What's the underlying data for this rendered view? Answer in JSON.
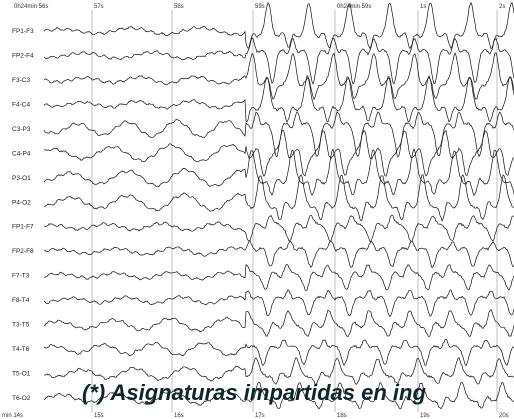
{
  "time_labels_top": [
    "0h24min 56s",
    "57s",
    "58s",
    "59s",
    "0h24min 59s",
    "1s",
    "2s"
  ],
  "time_labels_bottom": [
    "min 14s",
    "15s",
    "16s",
    "17s",
    "18s",
    "19s",
    "20s"
  ],
  "channels": [
    "FP1-F3",
    "FP2-F4",
    "F3-C3",
    "F4-C4",
    "C3-P3",
    "C4-P4",
    "P3-O1",
    "P4-O2",
    "FP1-F7",
    "FP2-F8",
    "F7-T3",
    "F8-T4",
    "T3-T5",
    "T4-T6",
    "T5-O1",
    "T6-O2"
  ],
  "caption": "(*) Asignaturas impartidas en ing"
}
